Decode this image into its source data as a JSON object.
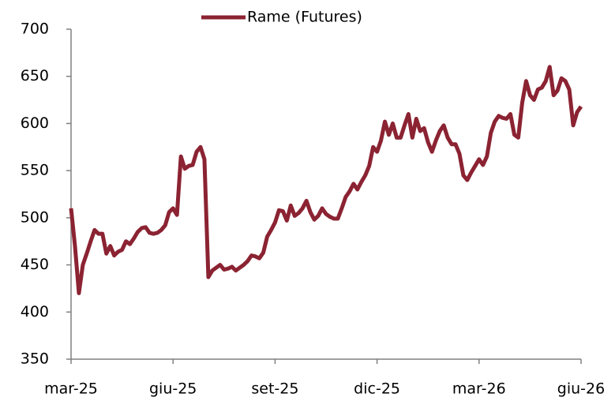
{
  "chart_data": {
    "type": "line",
    "categories": [
      "mar-25",
      null,
      null,
      null,
      null,
      null,
      null,
      null,
      null,
      null,
      null,
      null,
      null,
      null,
      null,
      null,
      null,
      null,
      null,
      null,
      null,
      null,
      null,
      null,
      null,
      null,
      "giu-25",
      null,
      null,
      null,
      null,
      null,
      null,
      null,
      null,
      null,
      null,
      null,
      null,
      null,
      null,
      null,
      null,
      null,
      null,
      null,
      null,
      null,
      null,
      null,
      null,
      null,
      "set-25",
      null,
      null,
      null,
      null,
      null,
      null,
      null,
      null,
      null,
      null,
      null,
      null,
      null,
      null,
      null,
      null,
      null,
      null,
      null,
      null,
      null,
      null,
      null,
      null,
      null,
      "dic-25",
      null,
      null,
      null,
      null,
      null,
      null,
      null,
      null,
      null,
      null,
      null,
      null,
      null,
      null,
      null,
      null,
      null,
      null,
      null,
      null,
      null,
      null,
      null,
      null,
      null,
      "mar-26",
      null,
      null,
      null,
      null,
      null,
      null,
      null,
      null,
      null,
      null,
      null,
      null,
      null,
      null,
      null,
      null,
      null,
      null,
      null,
      null,
      null,
      null,
      null,
      null,
      null,
      "giu-26"
    ],
    "series": [
      {
        "name": "Rame (Futures)",
        "color": "#8b2332",
        "values": [
          510,
          470,
          420,
          450,
          462,
          475,
          487,
          483,
          483,
          462,
          470,
          460,
          464,
          466,
          475,
          472,
          478,
          485,
          489,
          490,
          484,
          483,
          484,
          487,
          492,
          506,
          510,
          503,
          565,
          552,
          555,
          556,
          570,
          575,
          562,
          437,
          444,
          447,
          450,
          445,
          446,
          448,
          444,
          447,
          450,
          454,
          460,
          459,
          457,
          463,
          480,
          487,
          495,
          508,
          507,
          497,
          513,
          502,
          505,
          510,
          518,
          506,
          498,
          502,
          510,
          504,
          501,
          499,
          499,
          510,
          522,
          528,
          536,
          530,
          538,
          545,
          555,
          575,
          570,
          582,
          602,
          588,
          600,
          585,
          585,
          598,
          610,
          585,
          605,
          592,
          595,
          580,
          570,
          582,
          592,
          598,
          585,
          578,
          578,
          568,
          545,
          540,
          548,
          555,
          562,
          556,
          565,
          590,
          602,
          608,
          606,
          605,
          610,
          588,
          585,
          622,
          645,
          630,
          625,
          636,
          638,
          645,
          660,
          630,
          635,
          648,
          645,
          636,
          598,
          612,
          618
        ]
      }
    ],
    "ylim": [
      350,
      700
    ],
    "yticks": [
      350,
      400,
      450,
      500,
      550,
      600,
      650,
      700
    ],
    "legend": "top"
  }
}
